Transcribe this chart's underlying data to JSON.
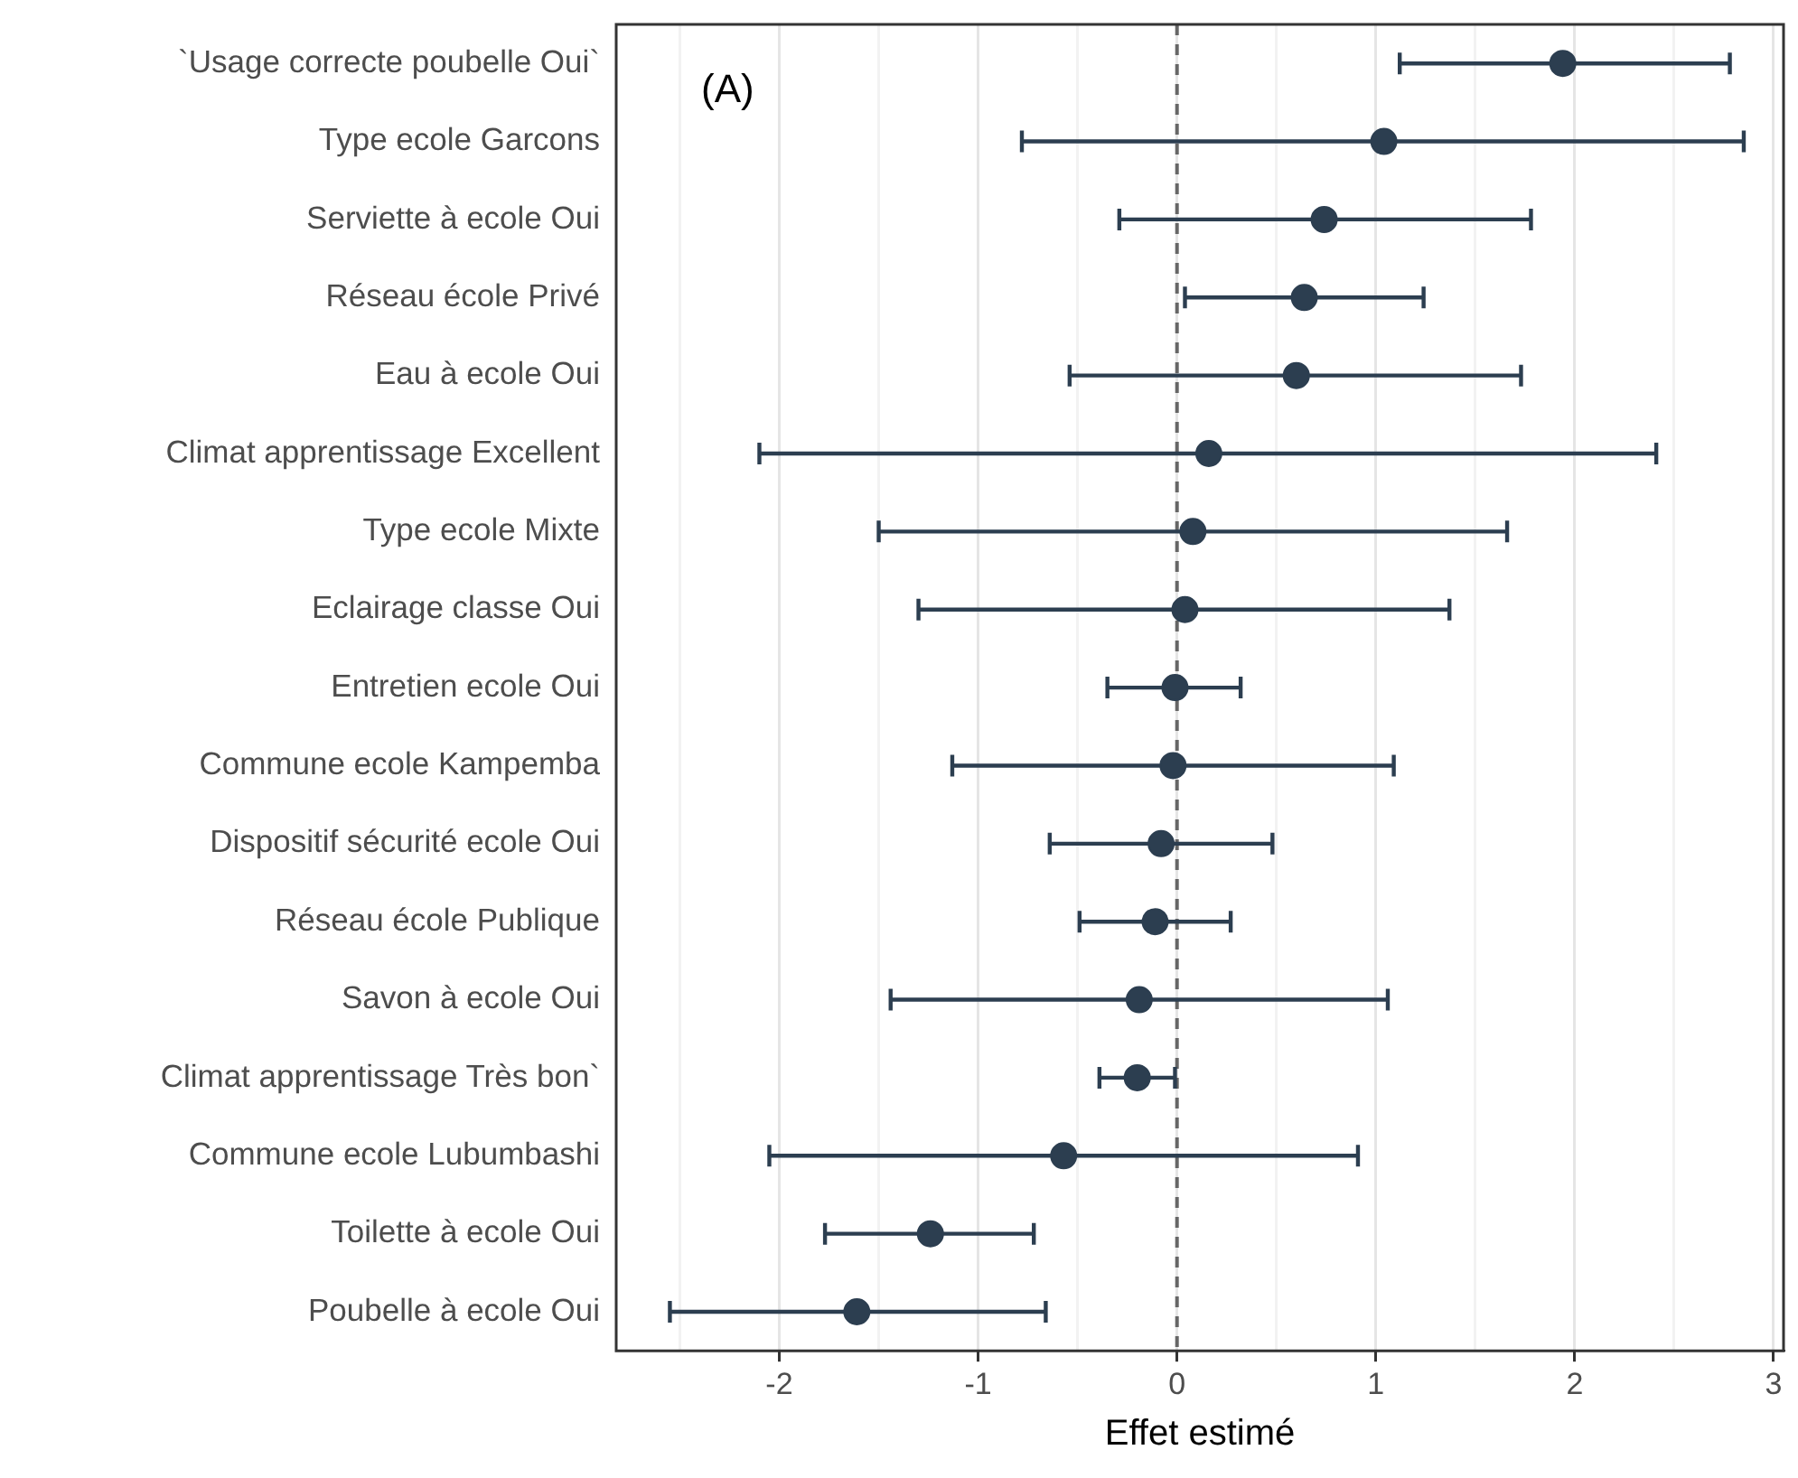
{
  "chart_data": {
    "type": "scatter",
    "orientation": "horizontal",
    "xlabel": "Effet estimé",
    "annotations": [
      "(A)"
    ],
    "categories": [
      "`Usage correcte poubelle Oui`",
      "Type ecole Garcons",
      "Serviette à ecole Oui",
      "Réseau école Privé",
      "Eau à ecole Oui",
      "Climat apprentissage Excellent",
      "Type ecole Mixte",
      "Eclairage classe Oui",
      "Entretien ecole Oui",
      "Commune ecole Kampemba",
      "Dispositif sécurité ecole Oui",
      "Réseau école Publique",
      "Savon à ecole Oui",
      "Climat apprentissage Très bon`",
      "Commune ecole Lubumbashi",
      "Toilette à ecole Oui",
      "Poubelle à ecole Oui"
    ],
    "values": [
      1.94,
      1.04,
      0.74,
      0.64,
      0.6,
      0.16,
      0.08,
      0.04,
      -0.01,
      -0.02,
      -0.08,
      -0.11,
      -0.19,
      -0.2,
      -0.57,
      -1.24,
      -1.61
    ],
    "errors": [
      [
        1.12,
        2.78
      ],
      [
        -0.78,
        2.85
      ],
      [
        -0.29,
        1.78
      ],
      [
        0.04,
        1.24
      ],
      [
        -0.54,
        1.73
      ],
      [
        -2.1,
        2.41
      ],
      [
        -1.5,
        1.66
      ],
      [
        -1.3,
        1.37
      ],
      [
        -0.35,
        0.32
      ],
      [
        -1.13,
        1.09
      ],
      [
        -0.64,
        0.48
      ],
      [
        -0.49,
        0.27
      ],
      [
        -1.44,
        1.06
      ],
      [
        -0.39,
        -0.01
      ],
      [
        -2.05,
        0.91
      ],
      [
        -1.77,
        -0.72
      ],
      [
        -2.55,
        -0.66
      ]
    ],
    "color": "#2c3e50",
    "marker": "circle",
    "xlim": [
      -2.82,
      3.05
    ],
    "xticks": [
      {
        "value": -2.5,
        "label": null
      },
      -2,
      {
        "value": -1.5,
        "label": null
      },
      -1,
      {
        "value": -0.5,
        "label": null
      },
      0,
      {
        "value": 0.5,
        "label": null
      },
      1,
      {
        "value": 1.5,
        "label": null
      },
      2,
      {
        "value": 2.5,
        "label": null
      },
      3
    ],
    "grid": "x",
    "ref_lines": [
      {
        "axis": "x",
        "value": 0,
        "color": "#666666",
        "line_style": "dashed"
      }
    ]
  }
}
